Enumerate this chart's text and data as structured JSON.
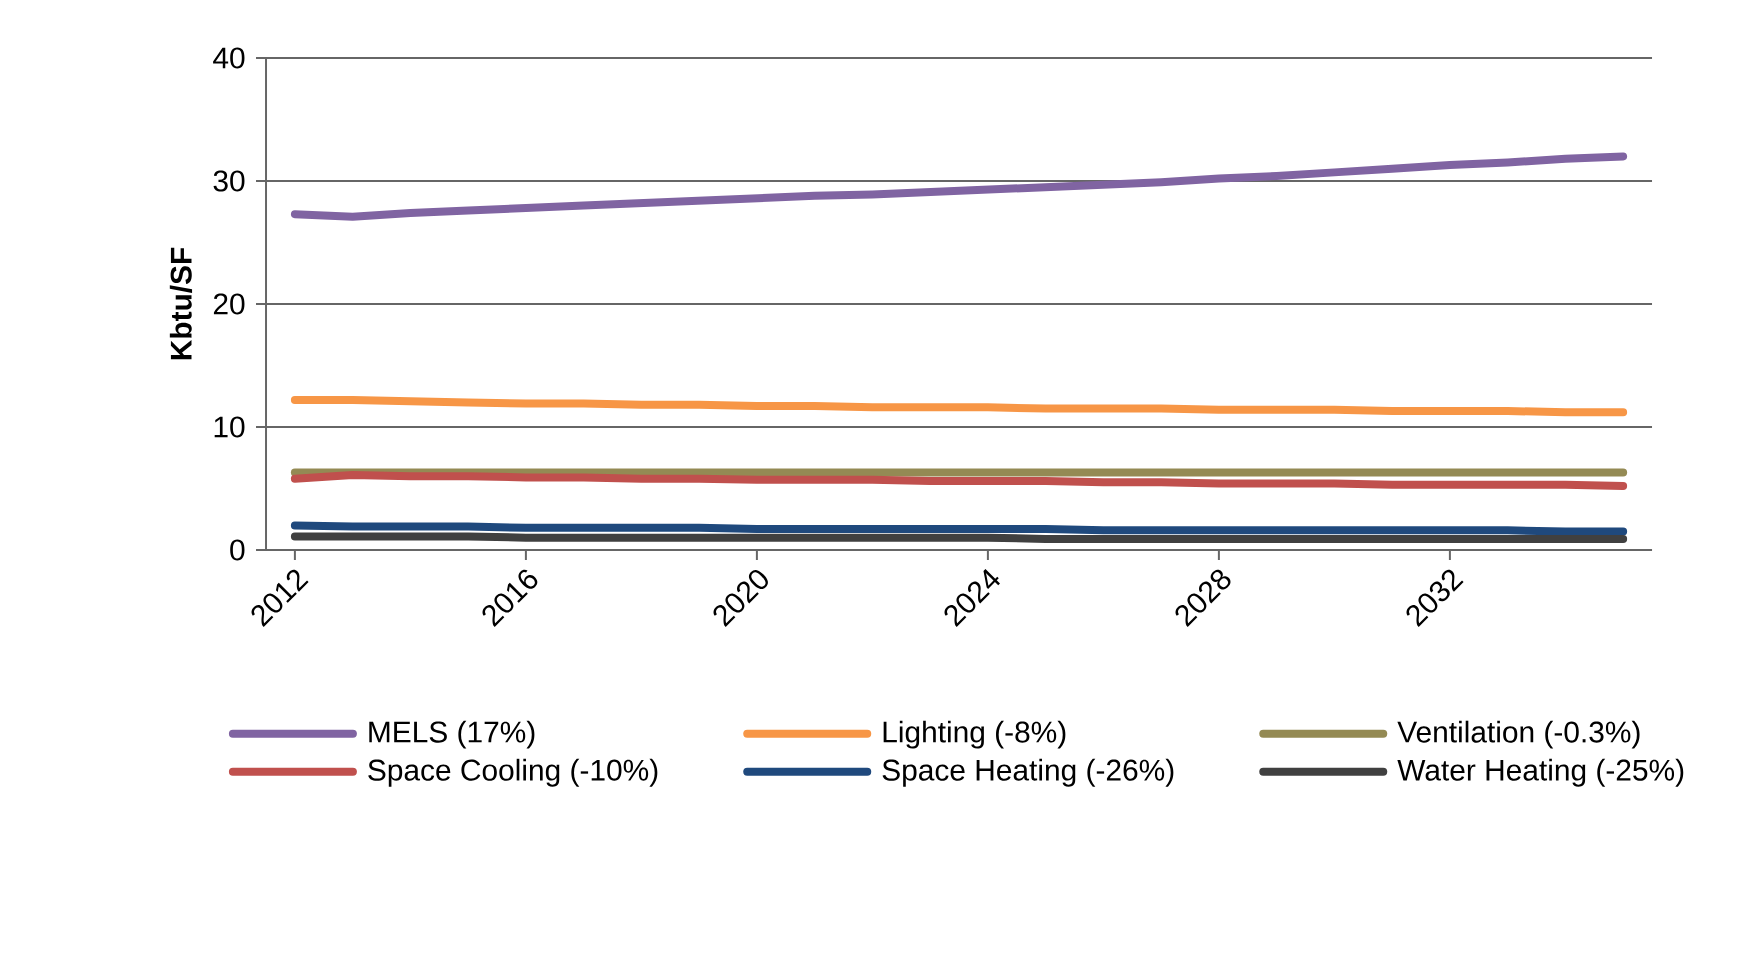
{
  "chart_data": {
    "type": "line",
    "ylabel": "Kbtu/SF",
    "x": [
      2012,
      2013,
      2014,
      2015,
      2016,
      2017,
      2018,
      2019,
      2020,
      2021,
      2022,
      2023,
      2024,
      2025,
      2026,
      2027,
      2028,
      2029,
      2030,
      2031,
      2032,
      2033,
      2034,
      2035
    ],
    "xlim": [
      2011.5,
      2035.5
    ],
    "xticks": [
      2012,
      2016,
      2020,
      2024,
      2028,
      2032
    ],
    "ylim": [
      0,
      40
    ],
    "yticks": [
      0,
      10,
      20,
      30,
      40
    ],
    "grid": "y",
    "legend": "bottom",
    "line_style": "solid",
    "marker": "none",
    "series": [
      {
        "name": "MELS (17%)",
        "color": "#8064a2",
        "values": [
          27.3,
          27.1,
          27.4,
          27.6,
          27.8,
          28.0,
          28.2,
          28.4,
          28.6,
          28.8,
          28.9,
          29.1,
          29.3,
          29.5,
          29.7,
          29.9,
          30.2,
          30.4,
          30.7,
          31.0,
          31.3,
          31.5,
          31.8,
          32.0
        ]
      },
      {
        "name": "Lighting (-8%)",
        "color": "#f79646",
        "values": [
          12.2,
          12.2,
          12.1,
          12.0,
          11.9,
          11.9,
          11.8,
          11.8,
          11.7,
          11.7,
          11.6,
          11.6,
          11.6,
          11.5,
          11.5,
          11.5,
          11.4,
          11.4,
          11.4,
          11.3,
          11.3,
          11.3,
          11.2,
          11.2
        ]
      },
      {
        "name": "Ventilation (-0.3%)",
        "color": "#948a54",
        "values": [
          6.3,
          6.3,
          6.3,
          6.3,
          6.3,
          6.3,
          6.3,
          6.3,
          6.3,
          6.3,
          6.3,
          6.3,
          6.3,
          6.3,
          6.3,
          6.3,
          6.3,
          6.3,
          6.3,
          6.3,
          6.3,
          6.3,
          6.3,
          6.3
        ]
      },
      {
        "name": "Space Cooling (-10%)",
        "color": "#c0504d",
        "values": [
          5.8,
          6.1,
          6.0,
          6.0,
          5.9,
          5.9,
          5.8,
          5.8,
          5.7,
          5.7,
          5.7,
          5.6,
          5.6,
          5.6,
          5.5,
          5.5,
          5.4,
          5.4,
          5.4,
          5.3,
          5.3,
          5.3,
          5.3,
          5.2
        ]
      },
      {
        "name": "Space Heating (-26%)",
        "color": "#1f497d",
        "values": [
          2.0,
          1.9,
          1.9,
          1.9,
          1.8,
          1.8,
          1.8,
          1.8,
          1.7,
          1.7,
          1.7,
          1.7,
          1.7,
          1.7,
          1.6,
          1.6,
          1.6,
          1.6,
          1.6,
          1.6,
          1.6,
          1.6,
          1.5,
          1.5
        ]
      },
      {
        "name": "Water Heating (-25%)",
        "color": "#404040",
        "values": [
          1.1,
          1.1,
          1.1,
          1.1,
          1.0,
          1.0,
          1.0,
          1.0,
          1.0,
          1.0,
          1.0,
          1.0,
          1.0,
          0.9,
          0.9,
          0.9,
          0.9,
          0.9,
          0.9,
          0.9,
          0.9,
          0.9,
          0.9,
          0.9
        ]
      }
    ]
  }
}
